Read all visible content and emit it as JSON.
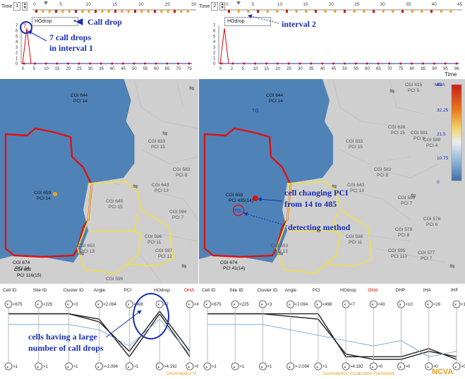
{
  "left": {
    "time_label": "Time",
    "time_value": "1",
    "ruler_ticks": [
      "0",
      "5",
      "10",
      "15",
      "20",
      "25",
      "30"
    ],
    "dropdown": "HOdrop",
    "chart_yticks": [
      "7",
      "6",
      "5",
      "4",
      "3",
      "2",
      "1",
      "0"
    ],
    "chart_xticks": [
      "0",
      "5",
      "10",
      "15",
      "20",
      "25",
      "30",
      "35",
      "40",
      "45",
      "50",
      "55",
      "60",
      "65",
      "70",
      "75"
    ],
    "annot_calldrop": "Call drop",
    "annot_count": "7",
    "annot_drops_l1": "7 call drops",
    "annot_drops_l2": "in interval 1",
    "map_cells": [
      {
        "name": "CGI 644",
        "pci": "PCI 14"
      },
      {
        "name": "CGI 659",
        "pci": "PCI 14"
      },
      {
        "name": "CGI 645",
        "pci": "PCI 15"
      },
      {
        "name": "CGI 653",
        "pci": "PCI 13"
      },
      {
        "name": "CGI 596",
        "pci": "PCI 11"
      },
      {
        "name": "CGI 643",
        "pci": "PCI 13"
      },
      {
        "name": "CGI 633",
        "pci": "PCI 15"
      },
      {
        "name": "CGI 594",
        "pci": "PCI 7"
      },
      {
        "name": "CGI 583",
        "pci": "PCI 8"
      },
      {
        "name": "CGI 674",
        "pci": "PCI 14"
      },
      {
        "name": "CGI 650",
        "pci": "PCI 116(15)"
      },
      {
        "name": "CGI 597",
        "pci": "PCI 12"
      },
      {
        "name": "CGI 599",
        "pci": ""
      }
    ],
    "pc_axes": [
      "Cell ID",
      "Site ID",
      "Cluster ID",
      "Angle",
      "PCI",
      "HOdrop",
      "OHA"
    ],
    "pc_top": [
      "<675",
      "<225",
      "<3",
      "<2.094",
      "<498",
      "<7",
      "<43"
    ],
    "pc_bottom": [
      ">1",
      ">1",
      ">1",
      ">-2.094",
      ">1",
      ">4.192",
      ">9"
    ],
    "annot_cells_l1": "cells having a large",
    "annot_cells_l2": "number of call drops",
    "footer": "GeoAnalytics Vi"
  },
  "right": {
    "time_label": "Time",
    "time_value": "2",
    "ruler_ticks": [
      "0",
      "5",
      "10",
      "15",
      "20",
      "25",
      "30",
      "35",
      "40",
      "45"
    ],
    "dropdown": "HOdrop",
    "chart_yticks": [
      "7",
      "6",
      "5",
      "4",
      "3",
      "2",
      "1",
      "0"
    ],
    "chart_xticks": [
      "0",
      "2",
      "5",
      "10",
      "15",
      "20",
      "25",
      "30",
      "35",
      "40",
      "45",
      "50",
      "55",
      "60",
      "65",
      "70",
      "75",
      "80",
      "85",
      "90",
      "95",
      "96"
    ],
    "annot_interval": "interval 2",
    "time_axis": "Time",
    "legend_title": "MRA",
    "legend_values": [
      "43",
      "32.25",
      "21.5",
      "10.75",
      "0"
    ],
    "map_cells": [
      {
        "name": "CGI 644",
        "pci": "PCI 14"
      },
      {
        "name": "CGI 659",
        "pci": "PCI 485(14)"
      },
      {
        "name": "CGI 653",
        "pci": "PCI 13"
      },
      {
        "name": "CGI 596",
        "pci": "PCI 11"
      },
      {
        "name": "CGI 615",
        "pci": "PCI 5"
      },
      {
        "name": "CGI 628",
        "pci": "PCI 15"
      },
      {
        "name": "CGI 591",
        "pci": "PCI 6"
      },
      {
        "name": "CGI 633",
        "pci": "PCI 15"
      },
      {
        "name": "CGI 643",
        "pci": "PCI 13"
      },
      {
        "name": "CGI 583",
        "pci": "PCI 8"
      },
      {
        "name": "CGI 589",
        "pci": "PCI 4"
      },
      {
        "name": "CGI 596",
        "pci": "PCI 7"
      },
      {
        "name": "CGI 578",
        "pci": "PCI 8"
      },
      {
        "name": "CGI 576",
        "pci": "PCI 6"
      },
      {
        "name": "CGI 595",
        "pci": "PCI 110"
      },
      {
        "name": "CGI 577",
        "pci": "PCI 7"
      },
      {
        "name": "CGI 674",
        "pci": "PCI 41(14)"
      }
    ],
    "tg_top": "TG",
    "tg_circle": "TG",
    "annot_pci_l1": "cell changing PCI",
    "annot_pci_l2": "from 14 to 485",
    "annot_method": "detecting method",
    "pc_axes": [
      "Cell ID",
      "Site ID",
      "Cluster ID",
      "Angle",
      "PCI",
      "HOdrop",
      "OHA",
      "DHP",
      "IHA",
      "IHF"
    ],
    "pc_top": [
      "<675",
      "<225",
      "<3",
      "<2.094",
      "<498",
      "<7",
      "<43",
      "<10",
      "<28",
      "<12"
    ],
    "pc_bottom": [
      ">1",
      ">1",
      ">1",
      ">-2.094",
      ">1",
      ">4.192",
      ">0",
      ">0",
      ">0",
      ">0"
    ],
    "footer": "GeoAnalytics Visualization Framework",
    "logo": "NCVA"
  },
  "colors": {
    "accent": "#1a2fb3",
    "orange": "#f0a020",
    "red": "#d00000",
    "map_blue": "#4f83b8",
    "map_gray": "#cfcfcf",
    "yellow": "#f0e040"
  }
}
